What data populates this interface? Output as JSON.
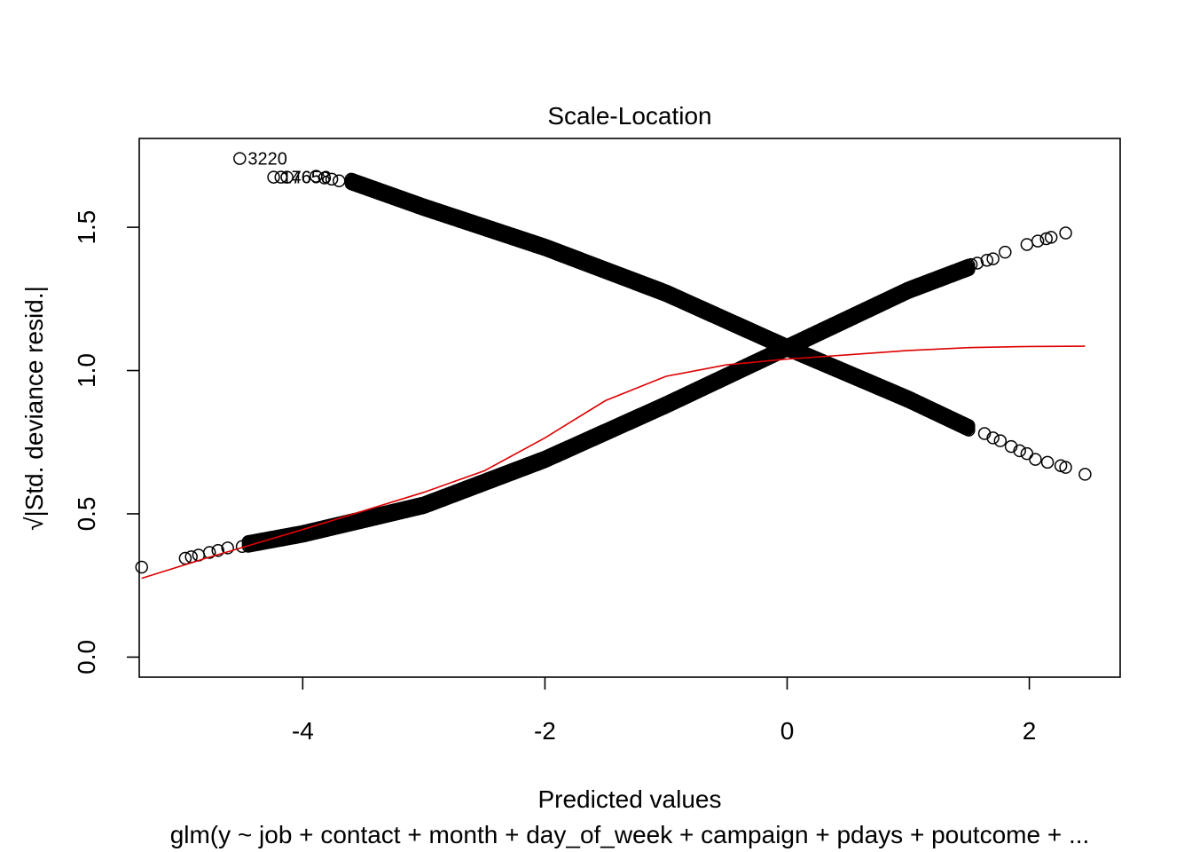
{
  "chart_data": {
    "type": "scatter",
    "title": "Scale-Location",
    "xlabel": "Predicted values",
    "ylabel": "√|Std. deviance resid.|",
    "subtitle": "glm(y ~ job + contact + month + day_of_week + campaign + pdays + poutcome + ...",
    "xlim": [
      -5.35,
      2.75
    ],
    "ylim": [
      -0.07,
      1.81
    ],
    "x_ticks": [
      -4,
      -2,
      0,
      2
    ],
    "x_tick_labels": [
      "-4",
      "-2",
      "0",
      "2"
    ],
    "y_ticks": [
      0.0,
      0.5,
      1.0,
      1.5
    ],
    "y_tick_labels": [
      "0.0",
      "0.5",
      "1.0",
      "1.5"
    ],
    "grid": false,
    "colors": {
      "points": "#000000",
      "smooth": "#dd0000"
    },
    "series": [
      {
        "description_key": "points",
        "marker": "open-circle",
        "points": [
          {
            "x": -5.33,
            "y": 0.314
          },
          {
            "x": -4.97,
            "y": 0.345
          },
          {
            "x": -4.92,
            "y": 0.35
          },
          {
            "x": -4.86,
            "y": 0.356
          },
          {
            "x": -4.77,
            "y": 0.365
          },
          {
            "x": -4.7,
            "y": 0.372
          },
          {
            "x": -4.62,
            "y": 0.381
          },
          {
            "x": -4.5,
            "y": 0.386
          },
          {
            "x": -4.52,
            "y": 1.74
          },
          {
            "x": -4.24,
            "y": 1.675
          },
          {
            "x": -4.18,
            "y": 1.675
          },
          {
            "x": -4.13,
            "y": 1.675
          },
          {
            "x": -3.89,
            "y": 1.678
          },
          {
            "x": -3.82,
            "y": 1.672
          },
          {
            "x": -3.76,
            "y": 1.668
          },
          {
            "x": -3.7,
            "y": 1.662
          },
          {
            "x": 1.63,
            "y": 0.78
          },
          {
            "x": 1.7,
            "y": 0.765
          },
          {
            "x": 1.76,
            "y": 0.755
          },
          {
            "x": 1.85,
            "y": 0.735
          },
          {
            "x": 1.92,
            "y": 0.72
          },
          {
            "x": 1.98,
            "y": 0.71
          },
          {
            "x": 2.05,
            "y": 0.69
          },
          {
            "x": 2.15,
            "y": 0.68
          },
          {
            "x": 2.26,
            "y": 0.668
          },
          {
            "x": 2.3,
            "y": 0.662
          },
          {
            "x": 2.46,
            "y": 0.638
          },
          {
            "x": 1.52,
            "y": 1.37
          },
          {
            "x": 1.57,
            "y": 1.375
          },
          {
            "x": 1.65,
            "y": 1.385
          },
          {
            "x": 1.7,
            "y": 1.39
          },
          {
            "x": 1.8,
            "y": 1.413
          },
          {
            "x": 1.98,
            "y": 1.44
          },
          {
            "x": 2.07,
            "y": 1.452
          },
          {
            "x": 2.14,
            "y": 1.46
          },
          {
            "x": 2.18,
            "y": 1.465
          },
          {
            "x": 2.3,
            "y": 1.48
          }
        ],
        "dense_band_upper": [
          {
            "x": -3.6,
            "y": 1.66
          },
          {
            "x": -3.0,
            "y": 1.57
          },
          {
            "x": -2.0,
            "y": 1.43
          },
          {
            "x": -1.0,
            "y": 1.27
          },
          {
            "x": 0.0,
            "y": 1.08
          },
          {
            "x": 0.5,
            "y": 0.99
          },
          {
            "x": 1.0,
            "y": 0.9
          },
          {
            "x": 1.5,
            "y": 0.8
          }
        ],
        "dense_band_lower": [
          {
            "x": -4.45,
            "y": 0.395
          },
          {
            "x": -4.0,
            "y": 0.43
          },
          {
            "x": -3.0,
            "y": 0.53
          },
          {
            "x": -2.0,
            "y": 0.69
          },
          {
            "x": -1.0,
            "y": 0.88
          },
          {
            "x": 0.0,
            "y": 1.08
          },
          {
            "x": 0.5,
            "y": 1.18
          },
          {
            "x": 1.0,
            "y": 1.28
          },
          {
            "x": 1.5,
            "y": 1.36
          }
        ]
      },
      {
        "description_key": "smooth",
        "type": "line",
        "points": [
          {
            "x": -5.33,
            "y": 0.275
          },
          {
            "x": -4.8,
            "y": 0.345
          },
          {
            "x": -4.0,
            "y": 0.445
          },
          {
            "x": -3.0,
            "y": 0.575
          },
          {
            "x": -2.5,
            "y": 0.65
          },
          {
            "x": -2.0,
            "y": 0.765
          },
          {
            "x": -1.5,
            "y": 0.895
          },
          {
            "x": -1.0,
            "y": 0.98
          },
          {
            "x": -0.5,
            "y": 1.02
          },
          {
            "x": 0.0,
            "y": 1.04
          },
          {
            "x": 0.5,
            "y": 1.055
          },
          {
            "x": 1.0,
            "y": 1.07
          },
          {
            "x": 1.5,
            "y": 1.08
          },
          {
            "x": 2.0,
            "y": 1.084
          },
          {
            "x": 2.46,
            "y": 1.085
          }
        ]
      }
    ],
    "annotations": [
      {
        "text": "3220",
        "x": -4.52,
        "y": 1.74
      },
      {
        "text": "17658",
        "x": -4.24,
        "y": 1.675
      },
      {
        "text": "14658",
        "x": -4.24,
        "y": 1.675
      }
    ]
  }
}
